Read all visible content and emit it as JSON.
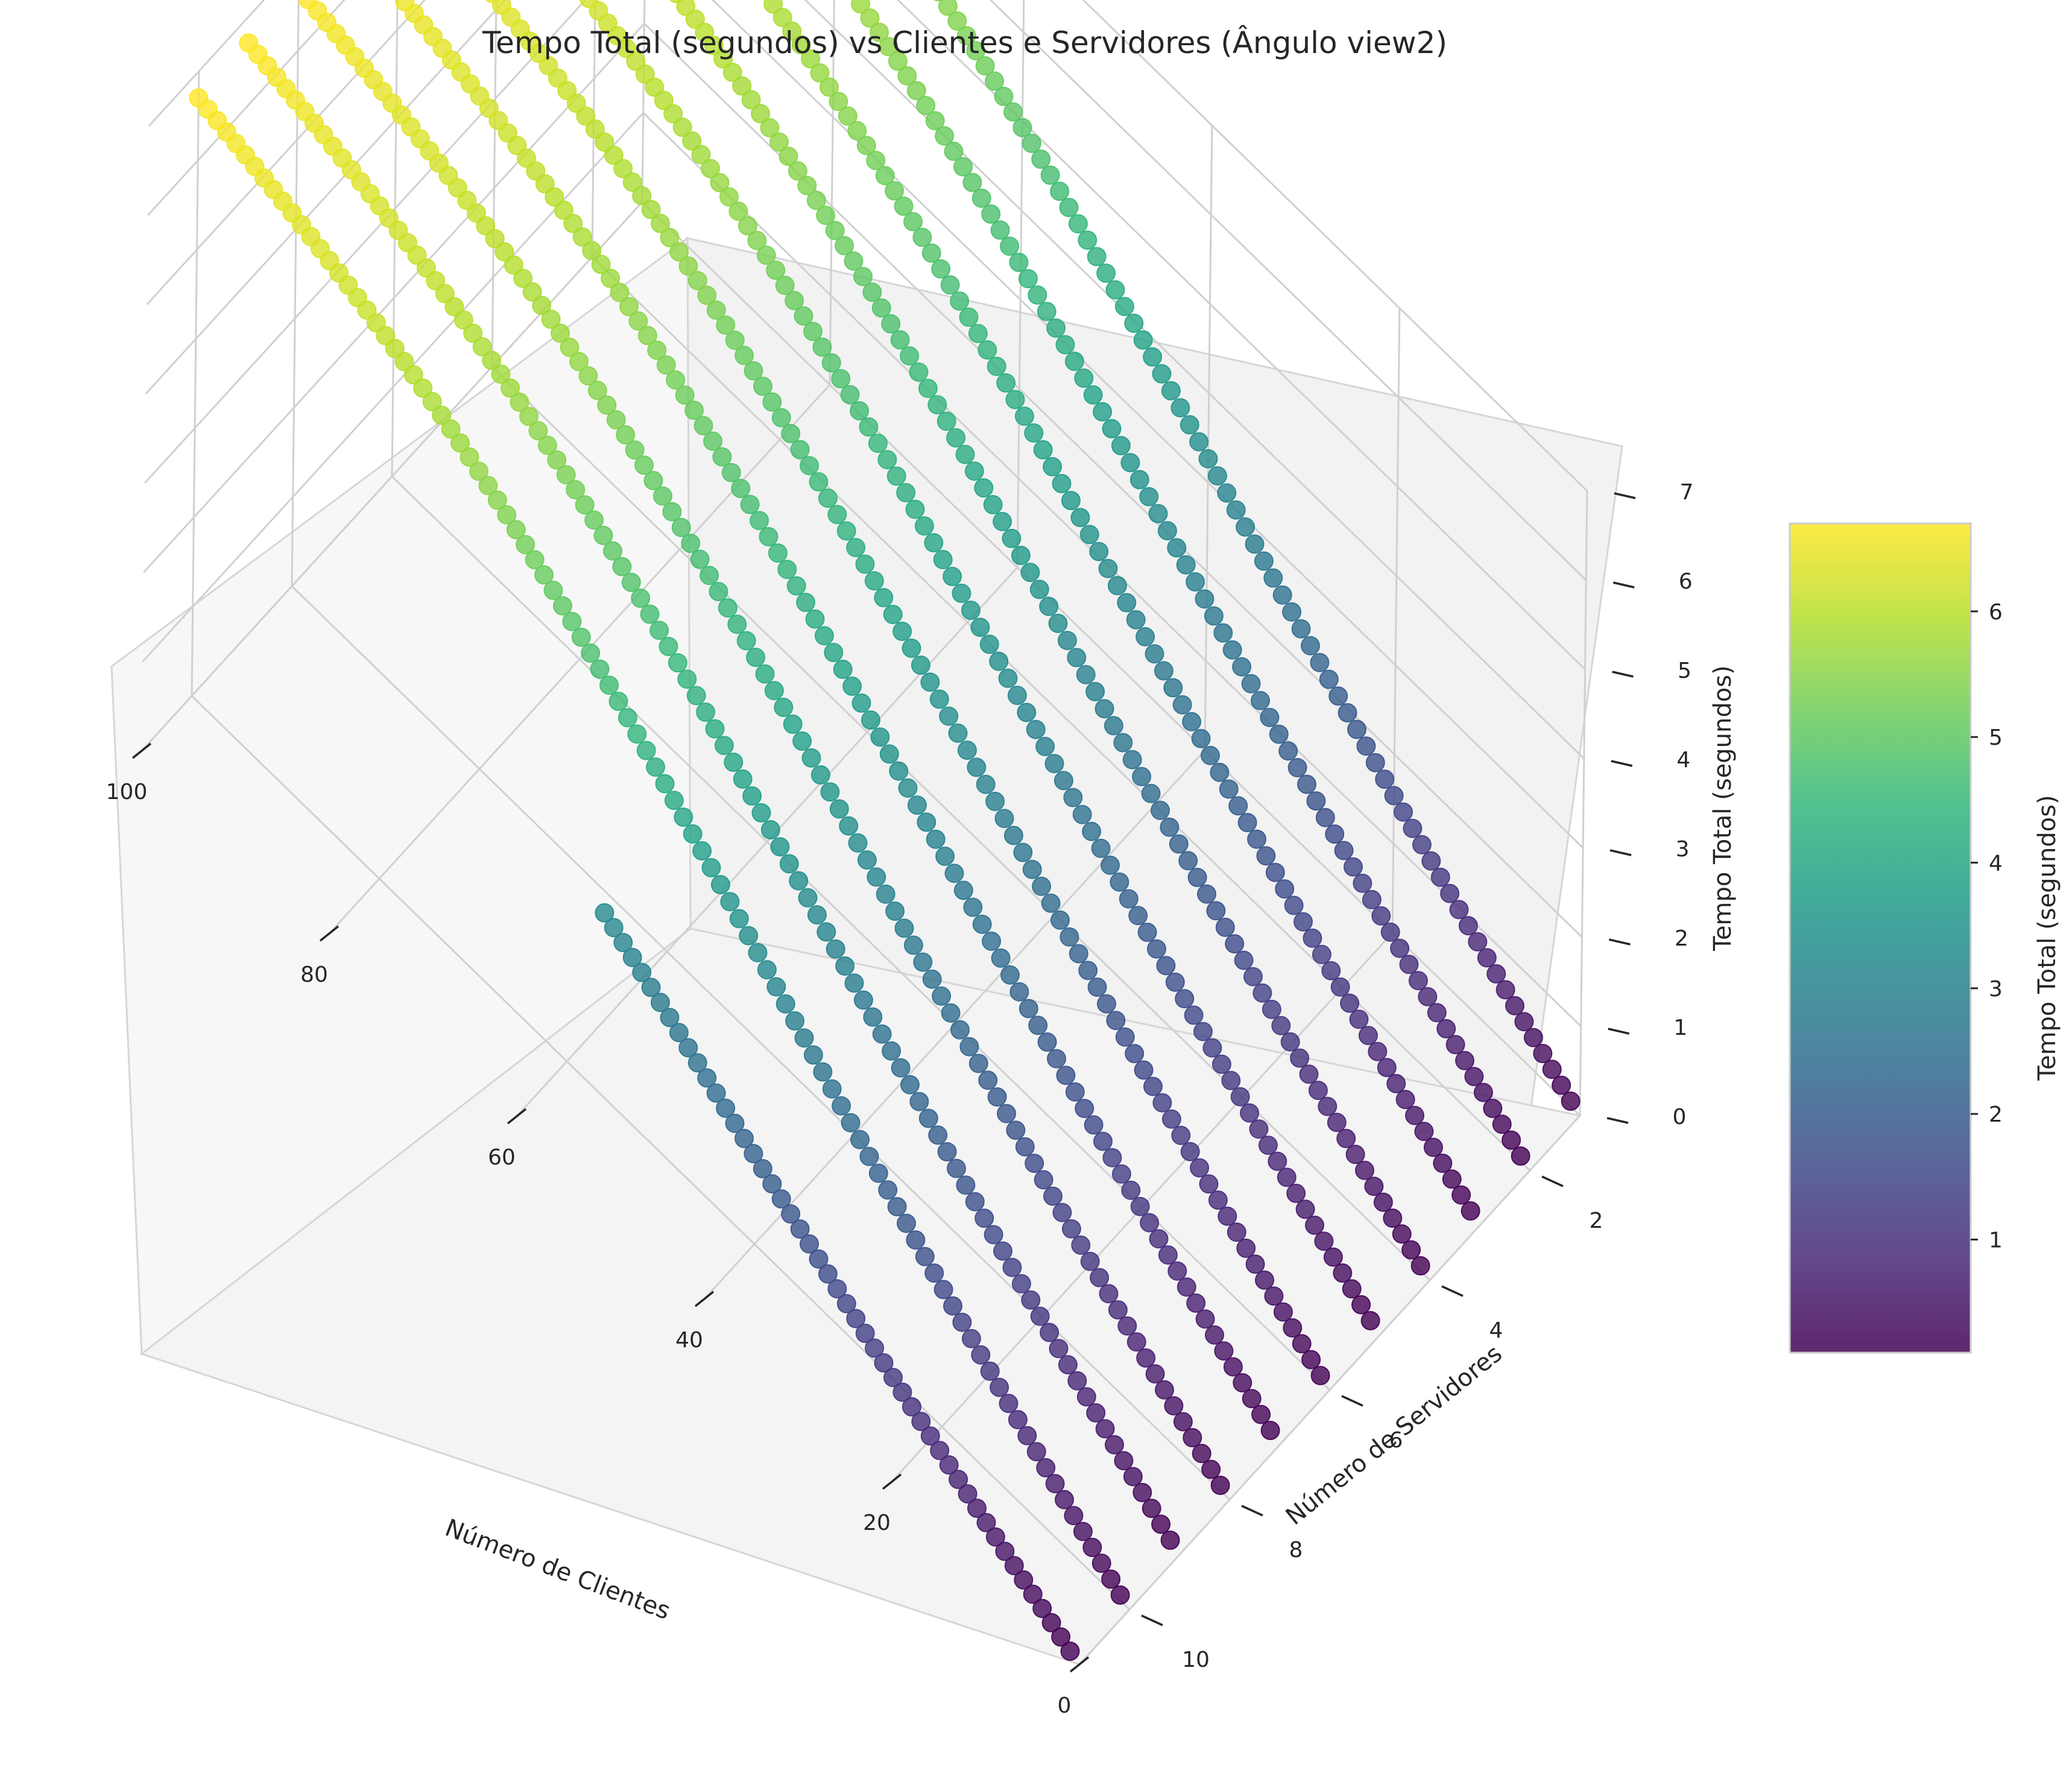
{
  "chart_data": {
    "type": "scatter",
    "projection": "3d",
    "title": "Tempo Total (segundos) vs Clientes e Servidores (Ângulo view2)",
    "xlabel": "Número de Clientes",
    "ylabel": "Número de Servidores",
    "zlabel": "Tempo Total (segundos)",
    "xlim": [
      0,
      100
    ],
    "ylim": [
      1,
      11
    ],
    "zlim": [
      0,
      7
    ],
    "x_ticks": [
      "0",
      "20",
      "40",
      "60",
      "80",
      "100"
    ],
    "y_ticks": [
      "2",
      "4",
      "6",
      "8",
      "10"
    ],
    "z_ticks": [
      "0",
      "1",
      "2",
      "3",
      "4",
      "5",
      "6",
      "7"
    ],
    "colormap": "viridis",
    "colorbar": {
      "label": "Tempo Total (segundos)",
      "ticks": [
        "1",
        "2",
        "3",
        "4",
        "5",
        "6"
      ],
      "range": [
        0.1,
        6.7
      ]
    },
    "point_alpha": 0.8,
    "grid": true,
    "series": [
      {
        "servidores": 1,
        "clientes": [
          1,
          100
        ],
        "tempo_total": [
          0.06,
          6.7
        ]
      },
      {
        "servidores": 2,
        "clientes": [
          1,
          100
        ],
        "tempo_total": [
          0.06,
          6.7
        ]
      },
      {
        "servidores": 3,
        "clientes": [
          1,
          100
        ],
        "tempo_total": [
          0.06,
          6.7
        ]
      },
      {
        "servidores": 4,
        "clientes": [
          1,
          100
        ],
        "tempo_total": [
          0.06,
          6.7
        ]
      },
      {
        "servidores": 5,
        "clientes": [
          1,
          100
        ],
        "tempo_total": [
          0.06,
          6.7
        ]
      },
      {
        "servidores": 6,
        "clientes": [
          1,
          100
        ],
        "tempo_total": [
          0.06,
          6.7
        ]
      },
      {
        "servidores": 7,
        "clientes": [
          1,
          100
        ],
        "tempo_total": [
          0.06,
          6.7
        ]
      },
      {
        "servidores": 8,
        "clientes": [
          1,
          100
        ],
        "tempo_total": [
          0.06,
          6.7
        ]
      },
      {
        "servidores": 9,
        "clientes": [
          1,
          100
        ],
        "tempo_total": [
          0.06,
          6.7
        ]
      },
      {
        "servidores": 10,
        "clientes": [
          1,
          100
        ],
        "tempo_total": [
          0.06,
          6.7
        ]
      },
      {
        "servidores": 11,
        "clientes": [
          1,
          51
        ],
        "tempo_total": [
          0.06,
          3.2
        ]
      }
    ]
  }
}
